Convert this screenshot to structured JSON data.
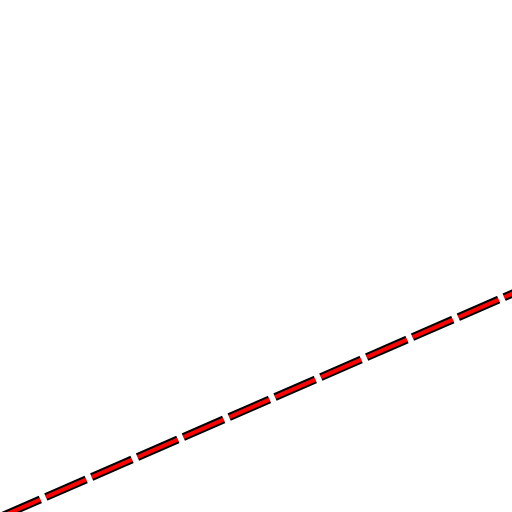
{
  "canvas": {
    "background": "#ffffff"
  },
  "line": {
    "style": "dashed",
    "primary_color": "#ff0000",
    "outline_color": "#000000"
  }
}
